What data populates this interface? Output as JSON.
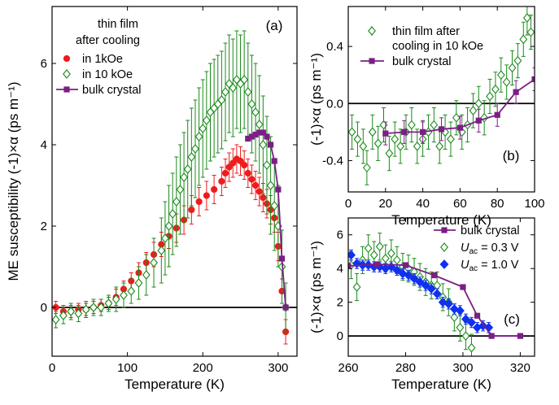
{
  "colors": {
    "red": "#ee1c1c",
    "green": "#1a8a1a",
    "purple": "#7b1f84",
    "blue": "#1030f0",
    "black": "#000000"
  },
  "chart_data": [
    {
      "panel": "(a)",
      "type": "scatter",
      "xlabel": "Temperature (K)",
      "ylabel": "ME susceptibility (-1)×α (ps m⁻¹)",
      "xlim": [
        0,
        325
      ],
      "ylim": [
        -1.2,
        7.4
      ],
      "xticks": [
        0,
        100,
        200,
        300
      ],
      "yticks": [
        0,
        2,
        4,
        6
      ],
      "legend": {
        "title_line1": "thin film",
        "title_line2": "after cooling",
        "placement": "top-left"
      },
      "series": [
        {
          "name": "in 1kOe",
          "marker": "filled-circle",
          "color": "#ee1c1c",
          "x": [
            5,
            15,
            25,
            35,
            45,
            55,
            65,
            75,
            85,
            95,
            105,
            115,
            125,
            135,
            145,
            155,
            165,
            175,
            185,
            195,
            205,
            215,
            225,
            230,
            235,
            240,
            245,
            250,
            255,
            260,
            265,
            270,
            275,
            280,
            285,
            290,
            295,
            300,
            305,
            310
          ],
          "y": [
            0.0,
            -0.1,
            -0.1,
            -0.05,
            -0.05,
            0.0,
            0.05,
            0.1,
            0.25,
            0.45,
            0.65,
            0.85,
            1.1,
            1.3,
            1.55,
            1.75,
            1.95,
            2.15,
            2.4,
            2.6,
            2.75,
            2.9,
            3.1,
            3.3,
            3.45,
            3.55,
            3.65,
            3.6,
            3.5,
            3.3,
            3.15,
            3.0,
            2.85,
            2.7,
            2.55,
            2.4,
            2.2,
            1.5,
            0.4,
            -0.6
          ],
          "err": [
            0.15,
            0.15,
            0.15,
            0.15,
            0.15,
            0.15,
            0.15,
            0.15,
            0.2,
            0.2,
            0.2,
            0.25,
            0.25,
            0.3,
            0.3,
            0.3,
            0.35,
            0.35,
            0.35,
            0.35,
            0.35,
            0.35,
            0.35,
            0.35,
            0.35,
            0.35,
            0.35,
            0.35,
            0.35,
            0.35,
            0.35,
            0.35,
            0.35,
            0.35,
            0.35,
            0.35,
            0.35,
            0.35,
            0.3,
            0.3
          ]
        },
        {
          "name": "in 10 kOe",
          "marker": "open-diamond",
          "color": "#1a8a1a",
          "x": [
            5,
            15,
            25,
            35,
            45,
            55,
            65,
            75,
            85,
            95,
            105,
            115,
            125,
            135,
            145,
            150,
            155,
            160,
            165,
            170,
            175,
            180,
            185,
            190,
            195,
            200,
            205,
            210,
            215,
            220,
            225,
            230,
            235,
            240,
            245,
            250,
            255,
            260,
            265,
            270,
            275,
            280,
            285,
            290,
            295,
            300,
            305,
            310
          ],
          "y": [
            -0.3,
            -0.2,
            -0.1,
            -0.15,
            -0.05,
            0.0,
            0.0,
            0.1,
            0.2,
            0.3,
            0.4,
            0.6,
            0.8,
            1.1,
            1.4,
            1.7,
            2.0,
            2.3,
            2.6,
            2.9,
            3.2,
            3.4,
            3.7,
            3.9,
            4.2,
            4.4,
            4.6,
            4.8,
            4.9,
            5.0,
            5.1,
            5.3,
            5.5,
            5.4,
            5.6,
            5.5,
            5.6,
            5.3,
            5.0,
            4.8,
            4.5,
            4.0,
            3.5,
            3.0,
            2.5,
            2.0,
            1.0,
            0.0
          ],
          "err": [
            0.2,
            0.2,
            0.2,
            0.2,
            0.2,
            0.2,
            0.2,
            0.2,
            0.3,
            0.3,
            0.3,
            0.4,
            0.5,
            0.6,
            0.8,
            0.9,
            1.0,
            1.0,
            1.1,
            1.1,
            1.1,
            1.2,
            1.2,
            1.2,
            1.2,
            1.2,
            1.2,
            1.2,
            1.2,
            1.2,
            1.2,
            1.2,
            1.2,
            1.2,
            1.2,
            1.2,
            1.2,
            1.2,
            1.2,
            1.2,
            1.2,
            1.2,
            1.2,
            1.2,
            1.1,
            1.0,
            0.9,
            0.6
          ]
        },
        {
          "name": "bulk crystal",
          "marker": "filled-square-line",
          "color": "#7b1f84",
          "x": [
            260,
            265,
            270,
            275,
            280,
            285,
            290,
            295,
            300,
            305,
            310
          ],
          "y": [
            4.15,
            4.2,
            4.25,
            4.3,
            4.3,
            4.2,
            4.0,
            3.6,
            2.9,
            1.2,
            0.0
          ]
        }
      ]
    },
    {
      "panel": "(b)",
      "type": "scatter",
      "xlabel": "Temperature (K)",
      "ylabel": "(-1)×α (ps m⁻¹)",
      "xlim": [
        0,
        100
      ],
      "ylim": [
        -0.62,
        0.68
      ],
      "xticks": [
        0,
        20,
        40,
        60,
        80,
        100
      ],
      "yticks": [
        -0.4,
        0.0,
        0.4
      ],
      "legend": {
        "entry1_line1": "thin film after",
        "entry1_line2": "cooling in 10 kOe",
        "entry2": "bulk crystal",
        "placement": "top-right"
      },
      "series": [
        {
          "name": "thin film after cooling in 10 kOe",
          "marker": "open-diamond",
          "color": "#1a8a1a",
          "x": [
            2,
            5,
            8,
            10,
            13,
            16,
            19,
            22,
            25,
            28,
            31,
            34,
            37,
            40,
            43,
            46,
            49,
            52,
            55,
            58,
            61,
            64,
            67,
            70,
            73,
            76,
            79,
            82,
            85,
            88,
            91,
            94,
            96,
            98
          ],
          "y": [
            -0.2,
            -0.25,
            -0.3,
            -0.45,
            -0.2,
            -0.28,
            -0.15,
            -0.35,
            -0.25,
            -0.3,
            -0.2,
            -0.15,
            -0.3,
            -0.25,
            -0.2,
            -0.15,
            -0.3,
            -0.2,
            -0.25,
            -0.1,
            -0.2,
            -0.15,
            -0.05,
            0.0,
            -0.1,
            0.05,
            0.1,
            0.2,
            0.15,
            0.25,
            0.3,
            0.45,
            0.6,
            0.5
          ],
          "err": [
            0.12,
            0.12,
            0.12,
            0.12,
            0.12,
            0.12,
            0.12,
            0.12,
            0.12,
            0.12,
            0.12,
            0.12,
            0.12,
            0.12,
            0.12,
            0.12,
            0.12,
            0.12,
            0.12,
            0.12,
            0.12,
            0.12,
            0.12,
            0.12,
            0.12,
            0.12,
            0.12,
            0.12,
            0.12,
            0.12,
            0.12,
            0.12,
            0.12,
            0.12
          ]
        },
        {
          "name": "bulk crystal",
          "marker": "filled-square-line",
          "color": "#7b1f84",
          "x": [
            20,
            30,
            40,
            50,
            60,
            70,
            80,
            90,
            100
          ],
          "y": [
            -0.21,
            -0.2,
            -0.2,
            -0.18,
            -0.17,
            -0.12,
            -0.08,
            0.08,
            0.17
          ],
          "err": [
            0.08,
            0.08,
            0.08,
            0.08,
            0.08,
            0.08,
            0.08,
            0.08,
            0.08
          ]
        }
      ]
    },
    {
      "panel": "(c)",
      "type": "scatter",
      "xlabel": "Temperature (K)",
      "ylabel": "(-1)×α (ps m⁻¹)",
      "xlim": [
        260,
        325
      ],
      "ylim": [
        -1.2,
        7.0
      ],
      "xticks": [
        260,
        280,
        300,
        320
      ],
      "yticks": [
        0,
        2,
        4,
        6
      ],
      "legend": {
        "entry1": "bulk crystal",
        "entry2_text": "U",
        "entry2_sub": "ac",
        "entry2_value": "= 0.3 V",
        "entry3_text": "U",
        "entry3_sub": "ac",
        "entry3_value": "= 1.0 V",
        "placement": "top-right"
      },
      "series": [
        {
          "name": "bulk crystal",
          "marker": "filled-square-line",
          "color": "#7b1f84",
          "x": [
            260,
            270,
            280,
            290,
            300,
            305,
            310,
            320
          ],
          "y": [
            4.15,
            4.25,
            4.2,
            3.6,
            2.9,
            1.2,
            0.0,
            0.0
          ]
        },
        {
          "name": "U_ac = 0.3 V",
          "marker": "open-diamond",
          "color": "#1a8a1a",
          "x": [
            261,
            263,
            265,
            267,
            269,
            271,
            273,
            275,
            277,
            279,
            281,
            283,
            285,
            287,
            289,
            291,
            293,
            295,
            297,
            299,
            301,
            303
          ],
          "y": [
            4.2,
            2.9,
            4.5,
            5.2,
            4.8,
            5.3,
            4.6,
            4.9,
            4.5,
            4.1,
            4.0,
            3.8,
            3.5,
            3.2,
            3.0,
            3.0,
            2.3,
            2.0,
            1.1,
            0.5,
            0.0,
            -0.7
          ],
          "err": [
            0.8,
            0.8,
            0.8,
            0.8,
            0.8,
            0.8,
            0.8,
            0.8,
            0.8,
            0.8,
            0.8,
            0.8,
            0.8,
            0.8,
            0.8,
            0.8,
            0.8,
            0.8,
            0.8,
            0.8,
            0.8,
            0.8
          ]
        },
        {
          "name": "U_ac = 1.0 V",
          "marker": "filled-diamond",
          "color": "#1030f0",
          "x": [
            261,
            263,
            265,
            267,
            269,
            271,
            273,
            275,
            277,
            279,
            281,
            283,
            285,
            287,
            289,
            291,
            293,
            295,
            297,
            299,
            301,
            303,
            305,
            307,
            309
          ],
          "y": [
            4.8,
            4.3,
            4.2,
            4.2,
            4.1,
            4.1,
            4.0,
            4.1,
            3.9,
            3.7,
            3.6,
            3.4,
            3.2,
            3.0,
            2.8,
            2.5,
            2.0,
            1.9,
            1.6,
            1.5,
            1.0,
            0.8,
            0.5,
            0.6,
            0.5
          ],
          "err": [
            0.3,
            0.3,
            0.3,
            0.3,
            0.3,
            0.3,
            0.3,
            0.3,
            0.3,
            0.3,
            0.3,
            0.3,
            0.3,
            0.3,
            0.3,
            0.3,
            0.3,
            0.3,
            0.3,
            0.3,
            0.3,
            0.3,
            0.3,
            0.3,
            0.3
          ]
        }
      ]
    }
  ]
}
